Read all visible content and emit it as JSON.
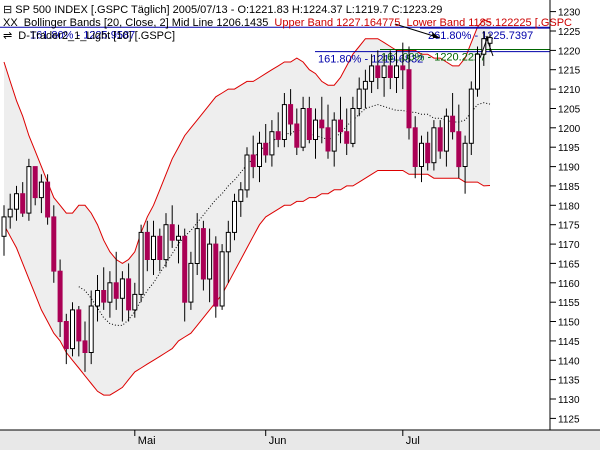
{
  "header": {
    "line1_symbol": "SP 500 INDEX [.GSPC  Täglich] 2005/07/13 - O:1221.83 H:1224.37 L:1219.7 C:1223.29",
    "line2_prefix": "XX",
    "line2_mid": "Bollinger Bands [20, Close, 2] Mid Line 1206.1435",
    "line2_upper": "Upper Band 1227.164775",
    "line2_lower": "Lower Band 1185.122225 [.GSPC",
    "line3_prefix": "⇌",
    "line3_text": "D-Trader2_1_Light [10] [.GSPC]"
  },
  "colors": {
    "up_candle": "#ffffff",
    "down_candle": "#aa0055",
    "bollinger_band": "#dd0000",
    "band_fill": "#eeeeee",
    "mid_line": "#000000",
    "fib_blue": "#0000aa",
    "fib_green": "#006600",
    "arrow": "#000000"
  },
  "chart_data": {
    "type": "candlestick",
    "ylim": [
      1122,
      1233
    ],
    "yticks": [
      1125,
      1130,
      1135,
      1140,
      1145,
      1150,
      1155,
      1160,
      1165,
      1170,
      1175,
      1180,
      1185,
      1190,
      1195,
      1200,
      1205,
      1210,
      1215,
      1220,
      1225,
      1230
    ],
    "x_labels": [
      {
        "label": "Mai",
        "index": 21
      },
      {
        "label": "Jun",
        "index": 42
      },
      {
        "label": "Jul",
        "index": 64
      }
    ],
    "candles": [
      [
        1172,
        1180,
        1167,
        1177
      ],
      [
        1177,
        1183,
        1174,
        1179
      ],
      [
        1179,
        1185,
        1176,
        1183
      ],
      [
        1183,
        1186,
        1177,
        1178
      ],
      [
        1178,
        1192,
        1176,
        1190
      ],
      [
        1190,
        1190,
        1180,
        1182
      ],
      [
        1182,
        1188,
        1178,
        1186
      ],
      [
        1186,
        1188,
        1175,
        1177
      ],
      [
        1177,
        1180,
        1160,
        1163
      ],
      [
        1163,
        1166,
        1146,
        1150
      ],
      [
        1150,
        1152,
        1139,
        1143
      ],
      [
        1143,
        1155,
        1141,
        1153
      ],
      [
        1153,
        1154,
        1141,
        1145
      ],
      [
        1145,
        1150,
        1137,
        1142
      ],
      [
        1142,
        1158,
        1139,
        1154
      ],
      [
        1154,
        1162,
        1150,
        1158
      ],
      [
        1158,
        1164,
        1153,
        1155
      ],
      [
        1155,
        1163,
        1151,
        1160
      ],
      [
        1160,
        1168,
        1153,
        1156
      ],
      [
        1156,
        1163,
        1150,
        1161
      ],
      [
        1161,
        1165,
        1150,
        1153
      ],
      [
        1153,
        1160,
        1151,
        1157
      ],
      [
        1157,
        1175,
        1155,
        1173
      ],
      [
        1173,
        1176,
        1163,
        1166
      ],
      [
        1166,
        1176,
        1162,
        1172
      ],
      [
        1172,
        1174,
        1163,
        1166
      ],
      [
        1166,
        1178,
        1164,
        1175
      ],
      [
        1175,
        1180,
        1169,
        1171
      ],
      [
        1171,
        1175,
        1165,
        1172
      ],
      [
        1172,
        1174,
        1150,
        1155
      ],
      [
        1155,
        1168,
        1153,
        1165
      ],
      [
        1165,
        1178,
        1162,
        1174
      ],
      [
        1174,
        1176,
        1158,
        1161
      ],
      [
        1161,
        1174,
        1155,
        1170
      ],
      [
        1170,
        1172,
        1151,
        1154
      ],
      [
        1154,
        1170,
        1153,
        1168
      ],
      [
        1168,
        1176,
        1160,
        1173
      ],
      [
        1173,
        1183,
        1171,
        1181
      ],
      [
        1181,
        1186,
        1177,
        1184
      ],
      [
        1184,
        1195,
        1182,
        1193
      ],
      [
        1193,
        1198,
        1187,
        1190
      ],
      [
        1190,
        1199,
        1186,
        1196
      ],
      [
        1196,
        1201,
        1191,
        1193
      ],
      [
        1193,
        1202,
        1190,
        1199
      ],
      [
        1199,
        1204,
        1195,
        1197
      ],
      [
        1197,
        1209,
        1195,
        1206
      ],
      [
        1206,
        1210,
        1198,
        1201
      ],
      [
        1201,
        1205,
        1193,
        1195
      ],
      [
        1195,
        1208,
        1194,
        1205
      ],
      [
        1205,
        1208,
        1196,
        1197
      ],
      [
        1197,
        1205,
        1192,
        1202
      ],
      [
        1202,
        1208,
        1196,
        1200
      ],
      [
        1200,
        1206,
        1192,
        1194
      ],
      [
        1194,
        1204,
        1190,
        1202
      ],
      [
        1202,
        1208,
        1196,
        1199
      ],
      [
        1199,
        1205,
        1193,
        1196
      ],
      [
        1196,
        1208,
        1195,
        1205
      ],
      [
        1205,
        1213,
        1203,
        1210
      ],
      [
        1210,
        1215,
        1205,
        1212
      ],
      [
        1212,
        1219,
        1209,
        1216
      ],
      [
        1216,
        1220,
        1210,
        1213
      ],
      [
        1213,
        1219,
        1208,
        1216
      ],
      [
        1216,
        1220,
        1210,
        1213
      ],
      [
        1213,
        1220,
        1209,
        1216
      ],
      [
        1216,
        1222,
        1210,
        1215
      ],
      [
        1215,
        1221,
        1197,
        1200
      ],
      [
        1200,
        1203,
        1187,
        1190
      ],
      [
        1190,
        1198,
        1186,
        1196
      ],
      [
        1196,
        1199,
        1189,
        1191
      ],
      [
        1191,
        1202,
        1189,
        1200
      ],
      [
        1200,
        1202,
        1192,
        1194
      ],
      [
        1194,
        1205,
        1190,
        1203
      ],
      [
        1203,
        1209,
        1197,
        1199
      ],
      [
        1199,
        1206,
        1187,
        1190
      ],
      [
        1190,
        1198,
        1183,
        1196
      ],
      [
        1196,
        1212,
        1193,
        1210
      ],
      [
        1210,
        1221,
        1208,
        1219
      ],
      [
        1219,
        1225,
        1216,
        1223
      ],
      [
        1221.83,
        1224.37,
        1219.7,
        1223.29
      ]
    ],
    "upper_band": [
      1217,
      1212,
      1207,
      1203,
      1198,
      1194,
      1190,
      1186,
      1182,
      1180,
      1178,
      1178,
      1180,
      1180,
      1178,
      1175,
      1171,
      1168,
      1166,
      1165,
      1166,
      1168,
      1173,
      1177,
      1180,
      1184,
      1188,
      1192,
      1195,
      1198,
      1200,
      1202,
      1204,
      1206,
      1208,
      1209,
      1210,
      1210,
      1211,
      1212,
      1212,
      1213,
      1214,
      1215,
      1216,
      1217,
      1217,
      1218,
      1217,
      1215,
      1214,
      1212,
      1211,
      1211,
      1213,
      1216,
      1219,
      1221,
      1223,
      1223,
      1223,
      1222,
      1221,
      1220,
      1220,
      1220,
      1220,
      1219,
      1219,
      1218,
      1218,
      1217,
      1216,
      1216,
      1218,
      1222,
      1226,
      1228,
      1227.16
    ],
    "lower_band": [
      1175,
      1172,
      1169,
      1165,
      1161,
      1157,
      1153,
      1150,
      1147,
      1145,
      1142,
      1140,
      1138,
      1136,
      1134,
      1132,
      1131,
      1131,
      1132,
      1133,
      1135,
      1137,
      1138,
      1139,
      1140,
      1141,
      1142,
      1143,
      1145,
      1146,
      1147,
      1149,
      1151,
      1153,
      1155,
      1157,
      1160,
      1163,
      1166,
      1169,
      1172,
      1175,
      1177,
      1178,
      1179,
      1180,
      1180,
      1181,
      1181,
      1182,
      1182,
      1183,
      1183,
      1184,
      1184,
      1185,
      1185,
      1186,
      1187,
      1188,
      1189,
      1189,
      1189,
      1189,
      1189,
      1188,
      1188,
      1188,
      1188,
      1187,
      1187,
      1187,
      1187,
      1187,
      1186,
      1186,
      1186,
      1185,
      1185.12
    ],
    "mid_line_start_index": 12,
    "fib_levels": [
      {
        "label": "161.80% - 1225.9587",
        "value": 1225.9587,
        "color": "blue"
      },
      {
        "label": "261.80% - 1225.7397",
        "value": 1225.7397,
        "color": "blue"
      },
      {
        "label": "161.80% - 1219.6832",
        "value": 1219.6832,
        "color": "blue"
      },
      {
        "label": "161.00% - 1220.2227",
        "value": 1220.2227,
        "color": "green"
      }
    ]
  }
}
